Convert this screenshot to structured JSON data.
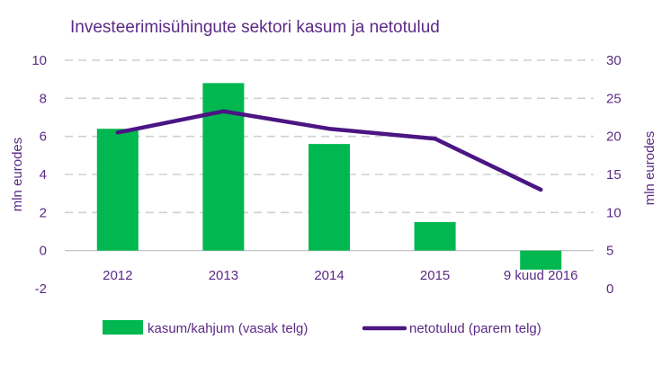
{
  "title": "Investeerimisühingute sektori kasum ja netotulud",
  "colors": {
    "bar": "#00b84f",
    "line": "#4b1583",
    "text": "#5b2a86",
    "grid": "#d0d0d0",
    "axis": "#bdbdbd"
  },
  "chart_data": {
    "type": "bar",
    "categories": [
      "2012",
      "2013",
      "2014",
      "2015",
      "9 kuud 2016"
    ],
    "series": [
      {
        "name": "kasum/kahjum (vasak telg)",
        "type": "bar",
        "axis": "left",
        "values": [
          6.4,
          8.8,
          5.6,
          1.5,
          -1.0
        ]
      },
      {
        "name": "netotulud (parem telg)",
        "type": "line",
        "axis": "right",
        "values": [
          20.5,
          23.3,
          21.0,
          19.7,
          13.0
        ]
      }
    ],
    "left_axis": {
      "label": "mln eurodes",
      "ylim": [
        -2,
        10
      ],
      "ticks": [
        "-2",
        "0",
        "2",
        "4",
        "6",
        "8",
        "10"
      ]
    },
    "right_axis": {
      "label": "mln eurodes",
      "ylim": [
        0,
        30
      ],
      "ticks": [
        "0",
        "5",
        "10",
        "15",
        "20",
        "25",
        "30"
      ]
    },
    "grid": true,
    "legend_position": "bottom"
  }
}
